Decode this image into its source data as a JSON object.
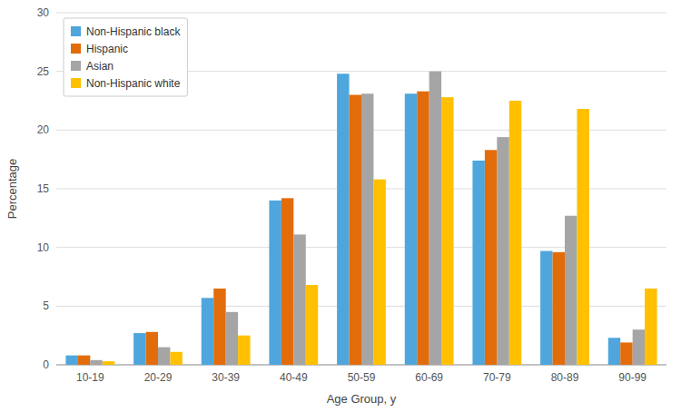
{
  "chart_data": {
    "type": "bar",
    "categories": [
      "10-19",
      "20-29",
      "30-39",
      "40-49",
      "50-59",
      "60-69",
      "70-79",
      "80-89",
      "90-99"
    ],
    "series": [
      {
        "name": "Non-Hispanic black",
        "color": "#4EA6DC",
        "values": [
          0.8,
          2.7,
          5.7,
          14.0,
          24.8,
          23.1,
          17.4,
          9.7,
          2.3
        ]
      },
      {
        "name": "Hispanic",
        "color": "#E36C0A",
        "values": [
          0.8,
          2.8,
          6.5,
          14.2,
          23.0,
          23.3,
          18.3,
          9.6,
          1.9
        ]
      },
      {
        "name": "Asian",
        "color": "#A5A5A5",
        "values": [
          0.4,
          1.5,
          4.5,
          11.1,
          23.1,
          25.0,
          19.4,
          12.7,
          3.0
        ]
      },
      {
        "name": "Non-Hispanic white",
        "color": "#FFC000",
        "values": [
          0.3,
          1.1,
          2.5,
          6.8,
          15.8,
          22.8,
          22.5,
          21.8,
          6.5
        ]
      }
    ],
    "xlabel": "Age Group, y",
    "ylabel": "Percentage",
    "ylim": [
      0,
      30
    ],
    "yticks": [
      0,
      5,
      10,
      15,
      20,
      25,
      30
    ],
    "grid": true,
    "legend": "upper left"
  }
}
